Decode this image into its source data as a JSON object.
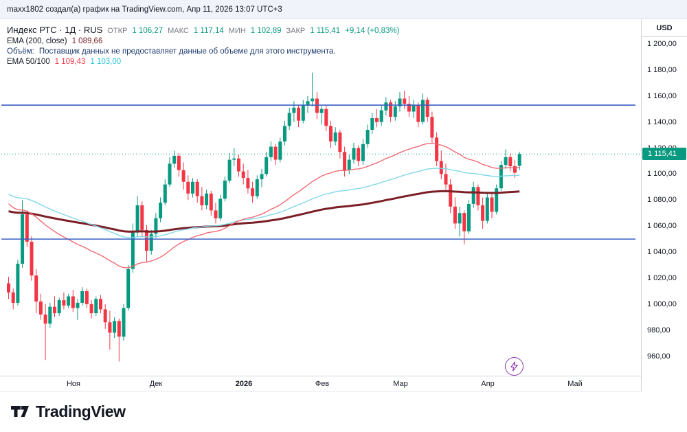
{
  "meta_bar": {
    "text": "maxx1802 создал(а) график на TradingView.com, Апр 11, 2026 13:07 UTC+3"
  },
  "legend": {
    "title": "Индекс РТС · 1Д · RUS",
    "ohlc": {
      "open_label": "ОТКР",
      "open": "1 106,27",
      "high_label": "МАКС",
      "high": "1 117,14",
      "low_label": "МИН",
      "low": "1 102,89",
      "close_label": "ЗАКР",
      "close": "1 115,41",
      "change": "+9,14 (+0,83%)"
    },
    "ema200_label": "EMA (200, close)",
    "ema200_value": "1 089,66",
    "volume_label": "Объём:",
    "volume_message": "Поставщик данных не предоставляет данные об объеме для этого инструмента.",
    "ema_50_100_label": "EMA 50/100",
    "ema50_value": "1 109,43",
    "ema100_value": "1 103,00"
  },
  "axis": {
    "currency": "USD",
    "last_price_badge": "1 115,41",
    "price_ticks": [
      {
        "label": "1 200,00",
        "value": 1200
      },
      {
        "label": "1 180,00",
        "value": 1180
      },
      {
        "label": "1 160,00",
        "value": 1160
      },
      {
        "label": "1 140,00",
        "value": 1140
      },
      {
        "label": "1 120,00",
        "value": 1120
      },
      {
        "label": "1 100,00",
        "value": 1100
      },
      {
        "label": "1 080,00",
        "value": 1080
      },
      {
        "label": "1 060,00",
        "value": 1060
      },
      {
        "label": "1 040,00",
        "value": 1040
      },
      {
        "label": "1 020,00",
        "value": 1020
      },
      {
        "label": "1 000,00",
        "value": 1000
      },
      {
        "label": "980,00",
        "value": 980
      },
      {
        "label": "960,00",
        "value": 960
      }
    ],
    "months": [
      {
        "label": "Ноя",
        "index": 14
      },
      {
        "label": "Дек",
        "index": 32
      },
      {
        "label": "2026",
        "index": 51,
        "bold": true
      },
      {
        "label": "Фев",
        "index": 68
      },
      {
        "label": "Мар",
        "index": 85
      },
      {
        "label": "Апр",
        "index": 104
      },
      {
        "label": "Май",
        "index": 123
      }
    ]
  },
  "footer": {
    "brand": "TradingView"
  },
  "chart_data": {
    "type": "candlestick",
    "title": "Индекс РТС · 1Д · RUS",
    "ylabel": "USD",
    "ylim": [
      945,
      1219
    ],
    "grid": false,
    "last_close": 1115.41,
    "colors": {
      "up": "#089981",
      "down": "#f23645"
    },
    "levels": [
      {
        "name": "resistance",
        "value": 1153,
        "color": "#3a5fc4"
      },
      {
        "name": "support",
        "value": 1050,
        "color": "#3a5fc4"
      }
    ],
    "emas": [
      {
        "period": 200,
        "seed": 1072,
        "color": "#7b1e26",
        "width": 3,
        "value_shown": 1089.66
      },
      {
        "period": 100,
        "seed": 1086,
        "color": "#7fd8e8",
        "width": 1.4,
        "value_shown": 1103.0
      },
      {
        "period": 50,
        "seed": 1080,
        "color": "#ef6a74",
        "width": 1.4,
        "value_shown": 1109.43
      }
    ],
    "candles": [
      [
        1016,
        1021,
        1004,
        1009
      ],
      [
        1009,
        1012,
        996,
        1001
      ],
      [
        1001,
        1034,
        999,
        1031
      ],
      [
        1031,
        1080,
        1028,
        1069
      ],
      [
        1069,
        1072,
        1044,
        1048
      ],
      [
        1048,
        1052,
        1018,
        1022
      ],
      [
        1022,
        1027,
        993,
        1002
      ],
      [
        1002,
        1008,
        988,
        992
      ],
      [
        992,
        1000,
        957,
        985
      ],
      [
        985,
        1001,
        982,
        998
      ],
      [
        998,
        1006,
        990,
        993
      ],
      [
        993,
        1005,
        991,
        1003
      ],
      [
        1003,
        1009,
        996,
        999
      ],
      [
        999,
        1008,
        997,
        1006
      ],
      [
        1006,
        1011,
        994,
        997
      ],
      [
        997,
        1004,
        988,
        1001
      ],
      [
        1001,
        1013,
        999,
        1010
      ],
      [
        1010,
        1012,
        997,
        1000
      ],
      [
        1000,
        1003,
        989,
        993
      ],
      [
        993,
        1006,
        991,
        1004
      ],
      [
        1004,
        1007,
        993,
        996
      ],
      [
        996,
        1000,
        981,
        986
      ],
      [
        986,
        995,
        965,
        978
      ],
      [
        978,
        990,
        974,
        987
      ],
      [
        987,
        989,
        956,
        975
      ],
      [
        975,
        1000,
        972,
        997
      ],
      [
        997,
        1030,
        995,
        1027
      ],
      [
        1027,
        1062,
        1024,
        1055
      ],
      [
        1055,
        1083,
        1052,
        1076
      ],
      [
        1076,
        1079,
        1052,
        1057
      ],
      [
        1057,
        1061,
        1032,
        1041
      ],
      [
        1041,
        1057,
        1038,
        1054
      ],
      [
        1054,
        1070,
        1051,
        1066
      ],
      [
        1066,
        1082,
        1063,
        1078
      ],
      [
        1078,
        1096,
        1076,
        1092
      ],
      [
        1092,
        1113,
        1090,
        1108
      ],
      [
        1108,
        1118,
        1105,
        1114
      ],
      [
        1114,
        1116,
        1098,
        1103
      ],
      [
        1103,
        1109,
        1088,
        1094
      ],
      [
        1094,
        1099,
        1080,
        1085
      ],
      [
        1085,
        1097,
        1082,
        1094
      ],
      [
        1094,
        1096,
        1078,
        1083
      ],
      [
        1083,
        1090,
        1072,
        1076
      ],
      [
        1076,
        1088,
        1073,
        1085
      ],
      [
        1085,
        1087,
        1068,
        1072
      ],
      [
        1072,
        1078,
        1062,
        1066
      ],
      [
        1066,
        1084,
        1064,
        1081
      ],
      [
        1081,
        1098,
        1079,
        1095
      ],
      [
        1095,
        1116,
        1093,
        1111
      ],
      [
        1111,
        1120,
        1106,
        1112
      ],
      [
        1112,
        1115,
        1098,
        1102
      ],
      [
        1102,
        1108,
        1092,
        1097
      ],
      [
        1097,
        1103,
        1085,
        1089
      ],
      [
        1089,
        1094,
        1078,
        1083
      ],
      [
        1083,
        1099,
        1081,
        1096
      ],
      [
        1096,
        1104,
        1090,
        1100
      ],
      [
        1100,
        1117,
        1098,
        1113
      ],
      [
        1113,
        1125,
        1110,
        1121
      ],
      [
        1121,
        1123,
        1107,
        1111
      ],
      [
        1111,
        1128,
        1109,
        1125
      ],
      [
        1125,
        1141,
        1122,
        1137
      ],
      [
        1137,
        1151,
        1134,
        1147
      ],
      [
        1147,
        1156,
        1140,
        1151
      ],
      [
        1151,
        1153,
        1136,
        1141
      ],
      [
        1141,
        1157,
        1139,
        1153
      ],
      [
        1153,
        1160,
        1147,
        1156
      ],
      [
        1156,
        1178,
        1152,
        1158
      ],
      [
        1158,
        1163,
        1142,
        1147
      ],
      [
        1147,
        1152,
        1138,
        1150
      ],
      [
        1150,
        1153,
        1133,
        1137
      ],
      [
        1137,
        1141,
        1120,
        1125
      ],
      [
        1125,
        1136,
        1122,
        1132
      ],
      [
        1132,
        1134,
        1112,
        1117
      ],
      [
        1117,
        1121,
        1098,
        1103
      ],
      [
        1103,
        1115,
        1100,
        1111
      ],
      [
        1111,
        1124,
        1108,
        1120
      ],
      [
        1120,
        1122,
        1106,
        1110
      ],
      [
        1110,
        1127,
        1107,
        1123
      ],
      [
        1123,
        1138,
        1120,
        1134
      ],
      [
        1134,
        1147,
        1131,
        1143
      ],
      [
        1143,
        1150,
        1136,
        1140
      ],
      [
        1140,
        1153,
        1137,
        1149
      ],
      [
        1149,
        1159,
        1145,
        1155
      ],
      [
        1155,
        1157,
        1140,
        1144
      ],
      [
        1144,
        1156,
        1141,
        1152
      ],
      [
        1152,
        1163,
        1148,
        1158
      ],
      [
        1158,
        1164,
        1150,
        1154
      ],
      [
        1154,
        1160,
        1144,
        1148
      ],
      [
        1148,
        1157,
        1143,
        1153
      ],
      [
        1153,
        1155,
        1136,
        1140
      ],
      [
        1140,
        1162,
        1138,
        1157
      ],
      [
        1157,
        1159,
        1140,
        1144
      ],
      [
        1144,
        1148,
        1124,
        1128
      ],
      [
        1128,
        1132,
        1106,
        1110
      ],
      [
        1110,
        1118,
        1096,
        1100
      ],
      [
        1100,
        1108,
        1088,
        1092
      ],
      [
        1092,
        1096,
        1070,
        1075
      ],
      [
        1075,
        1082,
        1058,
        1062
      ],
      [
        1062,
        1075,
        1052,
        1070
      ],
      [
        1070,
        1072,
        1046,
        1056
      ],
      [
        1056,
        1080,
        1054,
        1077
      ],
      [
        1077,
        1094,
        1074,
        1090
      ],
      [
        1090,
        1092,
        1072,
        1076
      ],
      [
        1076,
        1082,
        1058,
        1064
      ],
      [
        1064,
        1085,
        1062,
        1082
      ],
      [
        1082,
        1086,
        1066,
        1071
      ],
      [
        1071,
        1092,
        1069,
        1089
      ],
      [
        1089,
        1110,
        1087,
        1107
      ],
      [
        1107,
        1119,
        1104,
        1113
      ],
      [
        1113,
        1116,
        1102,
        1106
      ],
      [
        1106,
        1111,
        1097,
        1101
      ],
      [
        1106.27,
        1117.14,
        1102.89,
        1115.41
      ]
    ]
  }
}
